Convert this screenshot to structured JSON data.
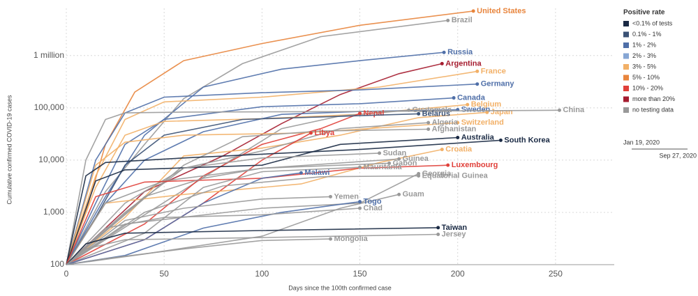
{
  "chart_data": {
    "type": "line",
    "log_y": true,
    "grid": true,
    "x_label": "Days since the 100th confirmed case",
    "y_label": "Cumulative confirmed COVID-19 cases",
    "xlim": [
      0,
      280
    ],
    "ylim": [
      100,
      8000000
    ],
    "xticks": [
      0,
      50,
      100,
      150,
      200,
      250
    ],
    "yticks": [
      100,
      {
        "value": 1000,
        "label": "1,000"
      },
      {
        "value": 10000,
        "label": "10,000"
      },
      {
        "value": 100000,
        "label": "100,000"
      },
      {
        "value": 1000000,
        "label": "1 million"
      }
    ],
    "legend": {
      "title": "Positive rate",
      "position": "right",
      "items": [
        {
          "label": "<0.1% of tests",
          "color": "#1a2a44"
        },
        {
          "label": "0.1% - 1%",
          "color": "#3b5275"
        },
        {
          "label": "1% - 2%",
          "color": "#4f6fa8"
        },
        {
          "label": "2% - 3%",
          "color": "#86a6d4"
        },
        {
          "label": "3% - 5%",
          "color": "#f2b067"
        },
        {
          "label": "5% - 10%",
          "color": "#e8853d"
        },
        {
          "label": "10% - 20%",
          "color": "#e0403a"
        },
        {
          "label": "more than 20%",
          "color": "#a51c2f"
        },
        {
          "label": "no testing data",
          "color": "#999999"
        }
      ]
    },
    "time_range": {
      "start": "Jan 19, 2020",
      "end": "Sep 27, 2020"
    },
    "series": [
      {
        "name": "United States",
        "color": "#e8853d",
        "x": [
          0,
          10,
          20,
          35,
          60,
          100,
          150,
          208
        ],
        "values": [
          100,
          1000,
          20000,
          200000,
          800000,
          1700000,
          3800000,
          7100000
        ]
      },
      {
        "name": "Brazil",
        "color": "#999999",
        "x": [
          0,
          20,
          40,
          60,
          90,
          130,
          195
        ],
        "values": [
          100,
          2500,
          20000,
          150000,
          700000,
          2300000,
          4700000
        ]
      },
      {
        "name": "Russia",
        "color": "#4f6fa8",
        "x": [
          0,
          20,
          40,
          70,
          110,
          150,
          193
        ],
        "values": [
          100,
          2000,
          30000,
          250000,
          550000,
          800000,
          1150000
        ]
      },
      {
        "name": "Argentina",
        "color": "#a51c2f",
        "x": [
          0,
          40,
          80,
          110,
          140,
          170,
          192
        ],
        "values": [
          100,
          2500,
          12000,
          50000,
          180000,
          450000,
          700000
        ]
      },
      {
        "name": "France",
        "color": "#f2b067",
        "x": [
          0,
          15,
          30,
          50,
          100,
          160,
          210
        ],
        "values": [
          100,
          5000,
          60000,
          130000,
          160000,
          250000,
          500000
        ]
      },
      {
        "name": "Germany",
        "color": "#4f6fa8",
        "x": [
          0,
          15,
          30,
          50,
          100,
          150,
          210
        ],
        "values": [
          100,
          10000,
          80000,
          160000,
          195000,
          220000,
          285000
        ]
      },
      {
        "name": "Canada",
        "color": "#4f6fa8",
        "x": [
          0,
          15,
          30,
          50,
          100,
          150,
          198
        ],
        "values": [
          100,
          1500,
          20000,
          60000,
          105000,
          120000,
          155000
        ]
      },
      {
        "name": "Belgium",
        "color": "#f2b067",
        "x": [
          0,
          15,
          30,
          50,
          100,
          150,
          205
        ],
        "values": [
          100,
          3000,
          30000,
          55000,
          62000,
          75000,
          115000
        ]
      },
      {
        "name": "Sweden",
        "color": "#4f6fa8",
        "x": [
          0,
          20,
          40,
          70,
          110,
          150,
          200
        ],
        "values": [
          100,
          1500,
          10000,
          35000,
          75000,
          85000,
          92000
        ]
      },
      {
        "name": "Japan",
        "color": "#f2b067",
        "x": [
          0,
          30,
          60,
          100,
          140,
          180,
          215
        ],
        "values": [
          100,
          800,
          12000,
          17000,
          30000,
          65000,
          82000
        ]
      },
      {
        "name": "China",
        "color": "#999999",
        "x": [
          0,
          10,
          20,
          30,
          60,
          150,
          252
        ],
        "values": [
          100,
          10000,
          60000,
          80000,
          83000,
          85000,
          90000
        ]
      },
      {
        "name": "Guatemala",
        "color": "#999999",
        "x": [
          0,
          40,
          80,
          110,
          140,
          175
        ],
        "values": [
          100,
          900,
          8000,
          40000,
          70000,
          90000
        ]
      },
      {
        "name": "Nepal",
        "color": "#e0403a",
        "x": [
          0,
          40,
          70,
          100,
          130,
          150
        ],
        "values": [
          100,
          600,
          5000,
          20000,
          40000,
          78000
        ]
      },
      {
        "name": "Belarus",
        "color": "#3b5275",
        "x": [
          0,
          15,
          30,
          50,
          90,
          180
        ],
        "values": [
          100,
          800,
          8000,
          30000,
          60000,
          77000
        ]
      },
      {
        "name": "Switzerland",
        "color": "#f2b067",
        "x": [
          0,
          15,
          30,
          60,
          120,
          200
        ],
        "values": [
          100,
          8000,
          22000,
          30000,
          33000,
          52000
        ]
      },
      {
        "name": "Algeria",
        "color": "#999999",
        "x": [
          0,
          30,
          60,
          100,
          140,
          185
        ],
        "values": [
          100,
          1500,
          7000,
          15000,
          40000,
          52000
        ]
      },
      {
        "name": "Afghanistan",
        "color": "#999999",
        "x": [
          0,
          30,
          60,
          90,
          130,
          185
        ],
        "values": [
          100,
          900,
          8000,
          28000,
          36000,
          39000
        ]
      },
      {
        "name": "Libya",
        "color": "#e0403a",
        "x": [
          0,
          40,
          70,
          100,
          125
        ],
        "values": [
          100,
          300,
          1500,
          10000,
          33000
        ]
      },
      {
        "name": "Australia",
        "color": "#1a2a44",
        "x": [
          0,
          15,
          30,
          100,
          140,
          200
        ],
        "values": [
          100,
          4000,
          6500,
          8000,
          20000,
          27000
        ]
      },
      {
        "name": "South Korea",
        "color": "#1a2a44",
        "x": [
          0,
          10,
          20,
          60,
          150,
          222
        ],
        "values": [
          100,
          5000,
          9000,
          11000,
          16000,
          24000
        ]
      },
      {
        "name": "Croatia",
        "color": "#f2b067",
        "x": [
          0,
          20,
          60,
          120,
          160,
          192
        ],
        "values": [
          100,
          1500,
          2200,
          3500,
          9000,
          16000
        ]
      },
      {
        "name": "Sudan",
        "color": "#999999",
        "x": [
          0,
          30,
          60,
          100,
          160
        ],
        "values": [
          100,
          1000,
          7000,
          11000,
          13600
        ]
      },
      {
        "name": "Guinea",
        "color": "#999999",
        "x": [
          0,
          20,
          50,
          100,
          170
        ],
        "values": [
          100,
          1500,
          4000,
          7000,
          10500
        ]
      },
      {
        "name": "Luxembourg",
        "color": "#e0403a",
        "x": [
          0,
          15,
          40,
          100,
          150,
          195
        ],
        "values": [
          100,
          2000,
          3800,
          4500,
          7000,
          8000
        ]
      },
      {
        "name": "Mauritania",
        "color": "#999999",
        "x": [
          0,
          40,
          70,
          100,
          150
        ],
        "values": [
          100,
          400,
          3000,
          6000,
          7300
        ]
      },
      {
        "name": "Gabon",
        "color": "#999999",
        "x": [
          0,
          40,
          70,
          100,
          165
        ],
        "values": [
          100,
          2000,
          4500,
          7000,
          8700
        ]
      },
      {
        "name": "Malawi",
        "color": "#4f6fa8",
        "x": [
          0,
          40,
          70,
          100,
          120
        ],
        "values": [
          100,
          300,
          1500,
          4500,
          5700
        ]
      },
      {
        "name": "Georgia",
        "color": "#999999",
        "x": [
          0,
          30,
          100,
          150,
          180
        ],
        "values": [
          100,
          600,
          1200,
          1500,
          5500
        ]
      },
      {
        "name": "Equatorial Guinea",
        "color": "#999999",
        "x": [
          0,
          40,
          80,
          130,
          180
        ],
        "values": [
          100,
          1000,
          3200,
          4800,
          5000
        ]
      },
      {
        "name": "Guam",
        "color": "#999999",
        "x": [
          0,
          40,
          100,
          140,
          170
        ],
        "values": [
          100,
          160,
          350,
          1200,
          2200
        ]
      },
      {
        "name": "Yemen",
        "color": "#999999",
        "x": [
          0,
          30,
          60,
          100,
          135
        ],
        "values": [
          100,
          700,
          1200,
          1800,
          2000
        ]
      },
      {
        "name": "Togo",
        "color": "#4f6fa8",
        "x": [
          0,
          30,
          70,
          110,
          150
        ],
        "values": [
          100,
          150,
          500,
          1000,
          1600
        ]
      },
      {
        "name": "Chad",
        "color": "#999999",
        "x": [
          0,
          20,
          50,
          100,
          150
        ],
        "values": [
          100,
          500,
          800,
          900,
          1200
        ]
      },
      {
        "name": "Taiwan",
        "color": "#1a2a44",
        "x": [
          0,
          10,
          30,
          100,
          190
        ],
        "values": [
          100,
          250,
          400,
          450,
          510
        ]
      },
      {
        "name": "Jersey",
        "color": "#999999",
        "x": [
          0,
          10,
          30,
          100,
          190
        ],
        "values": [
          100,
          200,
          300,
          330,
          380
        ]
      },
      {
        "name": "Mongolia",
        "color": "#999999",
        "x": [
          0,
          20,
          60,
          100,
          135
        ],
        "values": [
          100,
          130,
          200,
          290,
          310
        ]
      }
    ]
  }
}
